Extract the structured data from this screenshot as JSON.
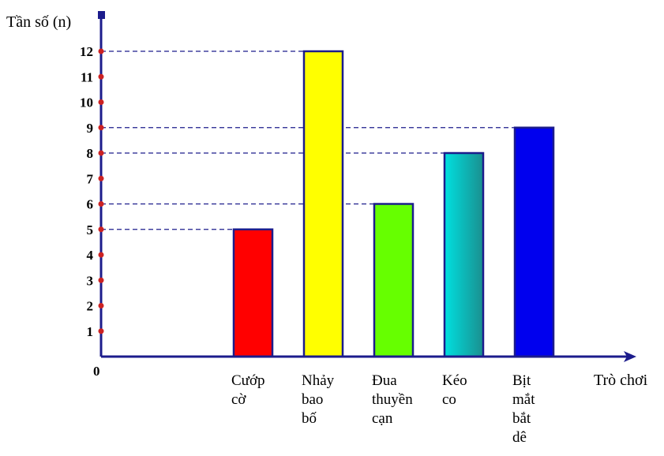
{
  "chart_data": {
    "type": "bar",
    "ylabel": "Tần số (n)",
    "xlabel": "Trò chơi",
    "origin_label": "0",
    "ylim": [
      0,
      12
    ],
    "yticks": [
      1,
      2,
      3,
      4,
      5,
      6,
      7,
      8,
      9,
      10,
      11,
      12
    ],
    "categories": [
      [
        "Cướp",
        "cờ"
      ],
      [
        "Nhảy",
        "bao",
        "bố"
      ],
      [
        "Đua",
        "thuyền",
        "cạn"
      ],
      [
        "Kéo",
        "co"
      ],
      [
        "Bịt",
        "mắt",
        "bắt",
        "dê"
      ]
    ],
    "values": [
      5,
      12,
      6,
      8,
      9
    ],
    "colors": [
      "#ff0000",
      "#ffff00",
      "#66ff00",
      "#1aa5a5",
      "#0000ee"
    ],
    "reference_lines": [
      5,
      6,
      8,
      9,
      12
    ],
    "grid": false,
    "legend": "none"
  }
}
